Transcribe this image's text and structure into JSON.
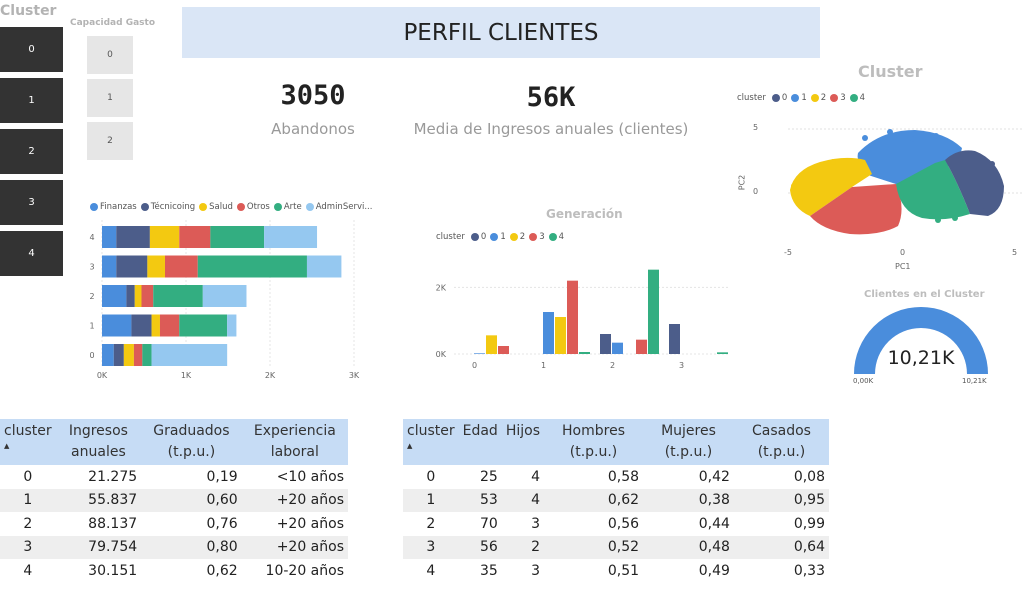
{
  "slicer_cluster": {
    "title": "Cluster",
    "items": [
      "0",
      "1",
      "2",
      "3",
      "4"
    ]
  },
  "slicer_gasto": {
    "title": "Capacidad Gasto",
    "items": [
      "0",
      "1",
      "2"
    ]
  },
  "header": {
    "title": "PERFIL CLIENTES"
  },
  "kpis": [
    {
      "value": "3050",
      "label": "Abandonos"
    },
    {
      "value": "56K",
      "label": "Media de Ingresos anuales (clientes)"
    }
  ],
  "cluster_scatter": {
    "title": "Cluster",
    "legend_title": "cluster",
    "legend": [
      "0",
      "1",
      "2",
      "3",
      "4"
    ],
    "xlabel": "PC1",
    "ylabel": "PC2",
    "xticks": [
      "-5",
      "0",
      "5"
    ],
    "yticks": [
      "5",
      "0"
    ]
  },
  "gauge": {
    "title": "Clientes en el Cluster",
    "value": "10,21K",
    "min": "0,00K",
    "max": "10,21K",
    "fraction": 1.0
  },
  "colors": {
    "blue": "#4a8ddc",
    "navy": "#4c5d8a",
    "yellow": "#f3c911",
    "red": "#dc5b57",
    "green": "#33ae81",
    "lightblue": "#95c8f0"
  },
  "chart_data": [
    {
      "type": "bar",
      "orientation": "horizontal",
      "stacked": true,
      "categories": [
        "4",
        "3",
        "2",
        "1",
        "0"
      ],
      "series": [
        {
          "name": "Finanzas",
          "values": [
            170,
            170,
            290,
            350,
            140
          ]
        },
        {
          "name": "Técnicoing",
          "values": [
            400,
            370,
            100,
            240,
            120
          ]
        },
        {
          "name": "Salud",
          "values": [
            350,
            210,
            80,
            100,
            120
          ]
        },
        {
          "name": "Otros",
          "values": [
            370,
            390,
            140,
            230,
            100
          ]
        },
        {
          "name": "Arte",
          "values": [
            640,
            1300,
            590,
            570,
            110
          ]
        },
        {
          "name": "AdminServi...",
          "values": [
            630,
            410,
            520,
            110,
            900
          ]
        }
      ],
      "xticks": [
        "0K",
        "1K",
        "2K",
        "3K"
      ],
      "xlim": [
        0,
        3000
      ],
      "legend": "top"
    },
    {
      "type": "bar",
      "title": "Generación",
      "legend_title": "cluster",
      "categories": [
        "0",
        "1",
        "2",
        "3"
      ],
      "series": [
        {
          "name": "0",
          "values": [
            0,
            0,
            600,
            900
          ]
        },
        {
          "name": "1",
          "values": [
            20,
            1260,
            340,
            0
          ]
        },
        {
          "name": "2",
          "values": [
            560,
            1110,
            0,
            0
          ]
        },
        {
          "name": "3",
          "values": [
            240,
            2200,
            430,
            0
          ]
        },
        {
          "name": "4",
          "values": [
            0,
            60,
            2530,
            50
          ]
        }
      ],
      "yticks": [
        "2K",
        "0K"
      ],
      "ylim": [
        0,
        3000
      ],
      "legend": "top-left"
    }
  ],
  "table1": {
    "headers": [
      "cluster",
      "Ingresos anuales",
      "Graduados (t.p.u.)",
      "Experiencia laboral"
    ],
    "rows": [
      [
        "0",
        "21.275",
        "0,19",
        "<10 años"
      ],
      [
        "1",
        "55.837",
        "0,60",
        "+20 años"
      ],
      [
        "2",
        "88.137",
        "0,76",
        "+20 años"
      ],
      [
        "3",
        "79.754",
        "0,80",
        "+20 años"
      ],
      [
        "4",
        "30.151",
        "0,62",
        "10-20 años"
      ]
    ]
  },
  "table2": {
    "headers": [
      "cluster",
      "Edad",
      "Hijos",
      "Hombres (t.p.u.)",
      "Mujeres (t.p.u.)",
      "Casados (t.p.u.)"
    ],
    "rows": [
      [
        "0",
        "25",
        "4",
        "0,58",
        "0,42",
        "0,08"
      ],
      [
        "1",
        "53",
        "4",
        "0,62",
        "0,38",
        "0,95"
      ],
      [
        "2",
        "70",
        "3",
        "0,56",
        "0,44",
        "0,99"
      ],
      [
        "3",
        "56",
        "2",
        "0,52",
        "0,48",
        "0,64"
      ],
      [
        "4",
        "35",
        "3",
        "0,51",
        "0,49",
        "0,33"
      ]
    ]
  }
}
